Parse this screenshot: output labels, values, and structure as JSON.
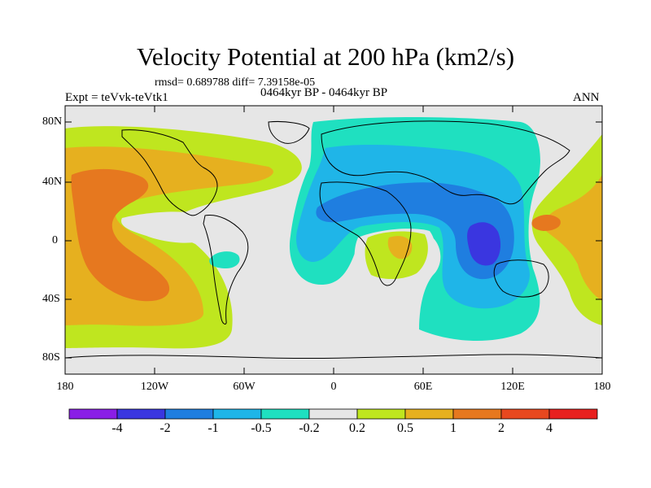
{
  "title": "Velocity Potential at 200 hPa (km2/s)",
  "stats_line": "rmsd= 0.689788 diff= 7.39158e-05",
  "period_line": "0464kyr BP - 0464kyr BP",
  "experiment_line": "Expt = teVvk-teVtk1",
  "season": "ANN",
  "lat_labels": [
    "80N",
    "40N",
    "0",
    "40S",
    "80S"
  ],
  "lon_labels": [
    "180",
    "120W",
    "60W",
    "0",
    "60E",
    "120E",
    "180"
  ],
  "colorbar": {
    "labels": [
      "-4",
      "-2",
      "-1",
      "-0.5",
      "-0.2",
      "0.2",
      "0.5",
      "1",
      "2",
      "4"
    ],
    "colors": [
      "#8a1ee6",
      "#3a36e0",
      "#1f7ee0",
      "#1fb5e8",
      "#1fe0c0",
      "#e6e6e6",
      "#bfe61f",
      "#e6b01f",
      "#e6781f",
      "#e8481f",
      "#e8201f"
    ]
  },
  "map_colors": {
    "neutral": "#e6e6e6",
    "pos1": "#bfe61f",
    "pos2": "#e6b01f",
    "pos3": "#e6781f",
    "neg1": "#1fe0c0",
    "neg2": "#1fb5e8",
    "neg3": "#1f7ee0",
    "neg4": "#3a36e0",
    "coast": "#000000"
  }
}
